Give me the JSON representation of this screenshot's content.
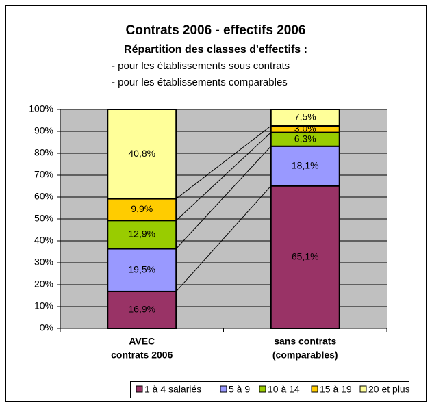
{
  "chart_data": {
    "type": "stacked_bar_100",
    "title": "Contrats 2006 - effectifs 2006",
    "subtitle": "Répartition des classes d'effectifs :",
    "subtitle_lines": [
      "- pour les établissements sous contrats",
      "- pour les établissements comparables"
    ],
    "categories": [
      [
        "AVEC",
        "contrats 2006"
      ],
      [
        "sans contrats",
        "(comparables)"
      ]
    ],
    "series": [
      {
        "name": "1 à 4 salariés",
        "color": "#993366",
        "values": [
          16.9,
          65.1
        ],
        "value_labels": [
          "16,9%",
          "65,1%"
        ]
      },
      {
        "name": "5 à 9",
        "color": "#9999ff",
        "values": [
          19.5,
          18.1
        ],
        "value_labels": [
          "19,5%",
          "18,1%"
        ]
      },
      {
        "name": "10 à 14",
        "color": "#99cc00",
        "values": [
          12.9,
          6.3
        ],
        "value_labels": [
          "12,9%",
          "6,3%"
        ]
      },
      {
        "name": "15 à 19",
        "color": "#ffcc00",
        "values": [
          9.9,
          3.0
        ],
        "value_labels": [
          "9,9%",
          "3,0%"
        ]
      },
      {
        "name": "20 et plus",
        "color": "#ffff99",
        "values": [
          40.8,
          7.5
        ],
        "value_labels": [
          "40,8%",
          "7,5%"
        ]
      }
    ],
    "ylim": [
      0,
      100
    ],
    "yticks": [
      {
        "value": 0,
        "label": "0%"
      },
      {
        "value": 10,
        "label": "10%"
      },
      {
        "value": 20,
        "label": "20%"
      },
      {
        "value": 30,
        "label": "30%"
      },
      {
        "value": 40,
        "label": "40%"
      },
      {
        "value": 50,
        "label": "50%"
      },
      {
        "value": 60,
        "label": "60%"
      },
      {
        "value": 70,
        "label": "70%"
      },
      {
        "value": 80,
        "label": "80%"
      },
      {
        "value": 90,
        "label": "90%"
      },
      {
        "value": 100,
        "label": "100%"
      }
    ],
    "grid": true,
    "series_lines": true,
    "legend": "bottom"
  }
}
